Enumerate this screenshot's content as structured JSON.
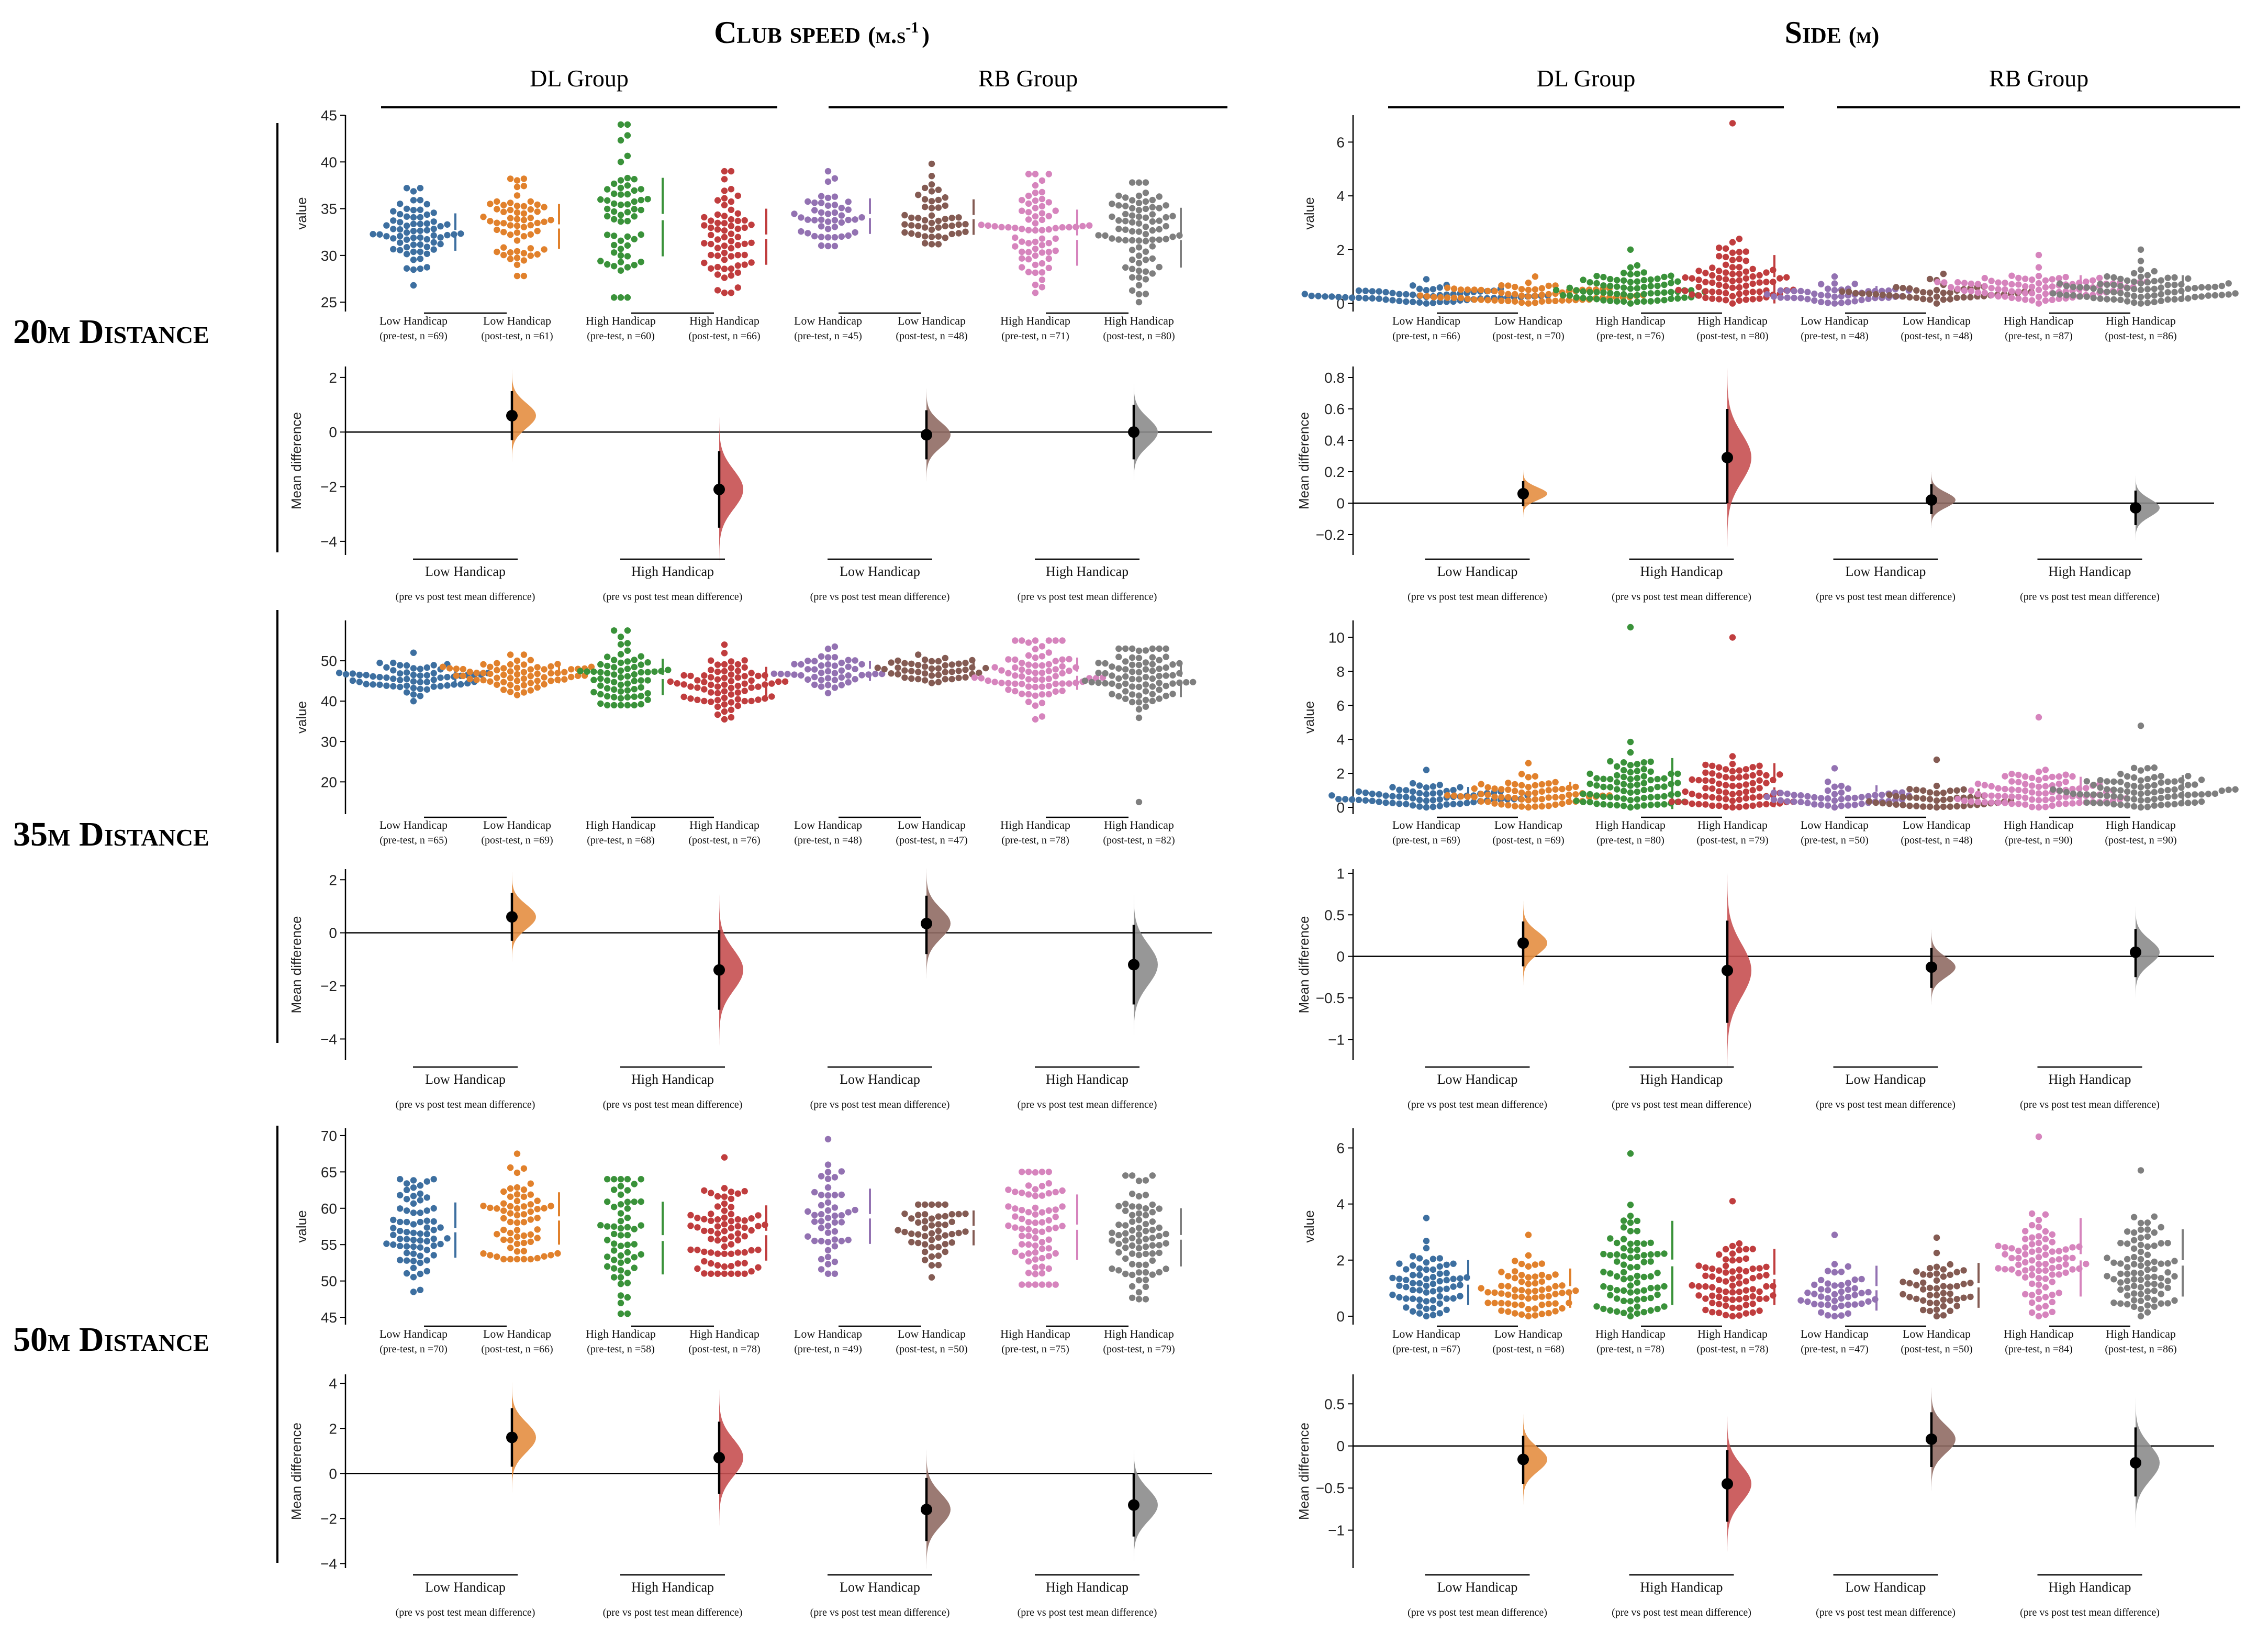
{
  "column_titles": [
    {
      "main": "Club speed",
      "unit": "(m.s",
      "sup": "-1",
      "close": ")"
    },
    {
      "main": "Side",
      "unit": "(m)",
      "sup": "",
      "close": ""
    }
  ],
  "group_labels": [
    "DL Group",
    "RB Group"
  ],
  "row_titles": [
    "20m Distance",
    "35m Distance",
    "50m Distance"
  ],
  "swarm_ylabel": "value",
  "diff_ylabel": "Mean difference",
  "handicaps": [
    "Low Handicap",
    "High Handicap"
  ],
  "comparison_caption": "(pre vs post test mean difference)",
  "palette": [
    "#3d6fa0",
    "#e1812c",
    "#3a923a",
    "#c03d3e",
    "#9372b2",
    "#845b53",
    "#d684bd",
    "#7f7f7f"
  ],
  "chart_data": [
    {
      "type": "estimation-plot",
      "metric": "Club speed",
      "distance": "20m",
      "swarm_ylim": [
        24,
        45
      ],
      "swarm_yticks": [
        25,
        30,
        35,
        40,
        45
      ],
      "diff_ylim": [
        -4.5,
        2.4
      ],
      "diff_yticks": [
        -4,
        -2,
        0,
        2
      ],
      "groups": [
        {
          "label": "Low Handicap",
          "sub": "(pre-test, n =69)",
          "n": 69,
          "mean": 32.5,
          "sd": 2.0,
          "min": 26.8,
          "max": 37.2
        },
        {
          "label": "Low Handicap",
          "sub": "(post-test, n =61)",
          "n": 61,
          "mean": 33.1,
          "sd": 2.4,
          "min": 27.8,
          "max": 38.2
        },
        {
          "label": "High Handicap",
          "sub": "(pre-test, n =60)",
          "n": 60,
          "mean": 34.1,
          "sd": 4.2,
          "min": 25.5,
          "max": 44.0
        },
        {
          "label": "High Handicap",
          "sub": "(post-test, n =66)",
          "n": 66,
          "mean": 32.0,
          "sd": 3.0,
          "min": 26.0,
          "max": 39.0
        },
        {
          "label": "Low Handicap",
          "sub": "(pre-test, n =45)",
          "n": 45,
          "mean": 34.2,
          "sd": 1.9,
          "min": 31.0,
          "max": 39.0
        },
        {
          "label": "Low Handicap",
          "sub": "(post-test, n =48)",
          "n": 48,
          "mean": 34.1,
          "sd": 1.9,
          "min": 31.2,
          "max": 39.8
        },
        {
          "label": "High Handicap",
          "sub": "(pre-test, n =71)",
          "n": 71,
          "mean": 31.9,
          "sd": 3.0,
          "min": 26.0,
          "max": 38.7
        },
        {
          "label": "High Handicap",
          "sub": "(post-test, n =80)",
          "n": 80,
          "mean": 31.9,
          "sd": 3.2,
          "min": 25.0,
          "max": 37.8
        }
      ],
      "diffs": [
        {
          "mean": 0.6,
          "ci": [
            -0.3,
            1.5
          ]
        },
        {
          "mean": -2.1,
          "ci": [
            -3.5,
            -0.7
          ]
        },
        {
          "mean": -0.1,
          "ci": [
            -1.0,
            0.8
          ]
        },
        {
          "mean": 0.0,
          "ci": [
            -1.0,
            1.0
          ]
        }
      ]
    },
    {
      "type": "estimation-plot",
      "metric": "Side",
      "distance": "20m",
      "swarm_ylim": [
        -0.3,
        7.0
      ],
      "swarm_yticks": [
        0,
        2,
        4,
        6
      ],
      "diff_ylim": [
        -0.33,
        0.87
      ],
      "diff_yticks": [
        -0.2,
        0.0,
        0.2,
        0.4,
        0.6,
        0.8
      ],
      "groups": [
        {
          "label": "Low Handicap",
          "sub": "(pre-test, n =66)",
          "n": 66,
          "mean": 0.35,
          "sd": 0.2,
          "min": 0.0,
          "max": 0.9
        },
        {
          "label": "Low Handicap",
          "sub": "(post-test, n =70)",
          "n": 70,
          "mean": 0.4,
          "sd": 0.25,
          "min": 0.0,
          "max": 1.0
        },
        {
          "label": "High Handicap",
          "sub": "(pre-test, n =76)",
          "n": 76,
          "mean": 0.6,
          "sd": 0.45,
          "min": 0.0,
          "max": 2.0
        },
        {
          "label": "High Handicap",
          "sub": "(post-test, n =80)",
          "n": 80,
          "mean": 0.9,
          "sd": 0.9,
          "min": 0.0,
          "max": 6.7
        },
        {
          "label": "Low Handicap",
          "sub": "(pre-test, n =48)",
          "n": 48,
          "mean": 0.4,
          "sd": 0.25,
          "min": 0.0,
          "max": 1.0
        },
        {
          "label": "Low Handicap",
          "sub": "(post-test, n =48)",
          "n": 48,
          "mean": 0.4,
          "sd": 0.25,
          "min": 0.0,
          "max": 1.1
        },
        {
          "label": "High Handicap",
          "sub": "(pre-test, n =87)",
          "n": 87,
          "mean": 0.65,
          "sd": 0.4,
          "min": 0.0,
          "max": 1.8
        },
        {
          "label": "High Handicap",
          "sub": "(post-test, n =86)",
          "n": 86,
          "mean": 0.6,
          "sd": 0.45,
          "min": 0.0,
          "max": 2.0
        }
      ],
      "diffs": [
        {
          "mean": 0.06,
          "ci": [
            -0.02,
            0.14
          ]
        },
        {
          "mean": 0.29,
          "ci": [
            0.0,
            0.6
          ]
        },
        {
          "mean": 0.02,
          "ci": [
            -0.07,
            0.12
          ]
        },
        {
          "mean": -0.03,
          "ci": [
            -0.14,
            0.08
          ]
        }
      ]
    },
    {
      "type": "estimation-plot",
      "metric": "Club speed",
      "distance": "35m",
      "swarm_ylim": [
        12,
        60
      ],
      "swarm_yticks": [
        20,
        30,
        40,
        50
      ],
      "diff_ylim": [
        -4.8,
        2.4
      ],
      "diff_yticks": [
        -4,
        -2,
        0,
        2
      ],
      "groups": [
        {
          "label": "Low Handicap",
          "sub": "(pre-test, n =65)",
          "n": 65,
          "mean": 46.0,
          "sd": 2.3,
          "min": 40.0,
          "max": 52.0
        },
        {
          "label": "Low Handicap",
          "sub": "(post-test, n =69)",
          "n": 69,
          "mean": 46.5,
          "sd": 2.1,
          "min": 41.5,
          "max": 51.5
        },
        {
          "label": "High Handicap",
          "sub": "(pre-test, n =68)",
          "n": 68,
          "mean": 46.0,
          "sd": 4.5,
          "min": 39.0,
          "max": 57.5
        },
        {
          "label": "High Handicap",
          "sub": "(post-test, n =76)",
          "n": 76,
          "mean": 44.5,
          "sd": 4.0,
          "min": 35.5,
          "max": 54.0
        },
        {
          "label": "Low Handicap",
          "sub": "(pre-test, n =48)",
          "n": 48,
          "mean": 47.5,
          "sd": 2.5,
          "min": 42.0,
          "max": 53.5
        },
        {
          "label": "Low Handicap",
          "sub": "(post-test, n =47)",
          "n": 47,
          "mean": 47.8,
          "sd": 1.8,
          "min": 44.5,
          "max": 51.5
        },
        {
          "label": "High Handicap",
          "sub": "(pre-test, n =78)",
          "n": 78,
          "mean": 46.8,
          "sd": 4.0,
          "min": 35.5,
          "max": 55.0
        },
        {
          "label": "High Handicap",
          "sub": "(post-test, n =82)",
          "n": 82,
          "mean": 45.5,
          "sd": 4.5,
          "min": 15.0,
          "max": 53.0
        }
      ],
      "diffs": [
        {
          "mean": 0.6,
          "ci": [
            -0.3,
            1.5
          ]
        },
        {
          "mean": -1.4,
          "ci": [
            -2.9,
            0.1
          ]
        },
        {
          "mean": 0.35,
          "ci": [
            -0.8,
            1.4
          ]
        },
        {
          "mean": -1.2,
          "ci": [
            -2.7,
            0.3
          ]
        }
      ]
    },
    {
      "type": "estimation-plot",
      "metric": "Side",
      "distance": "35m",
      "swarm_ylim": [
        -0.4,
        11.0
      ],
      "swarm_yticks": [
        0,
        2,
        4,
        6,
        8,
        10
      ],
      "diff_ylim": [
        -1.25,
        1.05
      ],
      "diff_yticks": [
        -1.0,
        -0.5,
        0.0,
        0.5,
        1.0
      ],
      "groups": [
        {
          "label": "Low Handicap",
          "sub": "(pre-test, n =69)",
          "n": 69,
          "mean": 0.7,
          "sd": 0.5,
          "min": 0.0,
          "max": 2.2
        },
        {
          "label": "Low Handicap",
          "sub": "(post-test, n =69)",
          "n": 69,
          "mean": 0.9,
          "sd": 0.6,
          "min": 0.0,
          "max": 2.6
        },
        {
          "label": "High Handicap",
          "sub": "(pre-test, n =80)",
          "n": 80,
          "mean": 1.4,
          "sd": 1.5,
          "min": 0.0,
          "max": 10.6
        },
        {
          "label": "High Handicap",
          "sub": "(post-test, n =79)",
          "n": 79,
          "mean": 1.3,
          "sd": 1.3,
          "min": 0.0,
          "max": 10.0
        },
        {
          "label": "Low Handicap",
          "sub": "(pre-test, n =50)",
          "n": 50,
          "mean": 0.8,
          "sd": 0.5,
          "min": 0.0,
          "max": 2.3
        },
        {
          "label": "Low Handicap",
          "sub": "(post-test, n =48)",
          "n": 48,
          "mean": 0.6,
          "sd": 0.5,
          "min": 0.0,
          "max": 2.8
        },
        {
          "label": "High Handicap",
          "sub": "(pre-test, n =90)",
          "n": 90,
          "mean": 1.0,
          "sd": 0.8,
          "min": 0.0,
          "max": 5.3
        },
        {
          "label": "High Handicap",
          "sub": "(post-test, n =90)",
          "n": 90,
          "mean": 1.1,
          "sd": 0.8,
          "min": 0.0,
          "max": 4.8
        }
      ],
      "diffs": [
        {
          "mean": 0.16,
          "ci": [
            -0.12,
            0.42
          ]
        },
        {
          "mean": -0.17,
          "ci": [
            -0.8,
            0.43
          ]
        },
        {
          "mean": -0.13,
          "ci": [
            -0.38,
            0.1
          ]
        },
        {
          "mean": 0.05,
          "ci": [
            -0.25,
            0.33
          ]
        }
      ]
    },
    {
      "type": "estimation-plot",
      "metric": "Club speed",
      "distance": "50m",
      "swarm_ylim": [
        44,
        71
      ],
      "swarm_yticks": [
        45,
        50,
        55,
        60,
        65,
        70
      ],
      "diff_ylim": [
        -4.2,
        4.4
      ],
      "diff_yticks": [
        -4,
        -2,
        0,
        2,
        4
      ],
      "groups": [
        {
          "label": "Low Handicap",
          "sub": "(pre-test, n =70)",
          "n": 70,
          "mean": 57.0,
          "sd": 3.8,
          "min": 48.5,
          "max": 64.0
        },
        {
          "label": "Low Handicap",
          "sub": "(post-test, n =66)",
          "n": 66,
          "mean": 58.6,
          "sd": 3.6,
          "min": 53.0,
          "max": 67.5
        },
        {
          "label": "High Handicap",
          "sub": "(pre-test, n =58)",
          "n": 58,
          "mean": 55.9,
          "sd": 5.0,
          "min": 45.5,
          "max": 64.0
        },
        {
          "label": "High Handicap",
          "sub": "(post-test, n =78)",
          "n": 78,
          "mean": 56.6,
          "sd": 3.8,
          "min": 51.0,
          "max": 67.0
        },
        {
          "label": "Low Handicap",
          "sub": "(pre-test, n =49)",
          "n": 49,
          "mean": 58.9,
          "sd": 3.8,
          "min": 51.0,
          "max": 69.5
        },
        {
          "label": "Low Handicap",
          "sub": "(post-test, n =50)",
          "n": 50,
          "mean": 57.3,
          "sd": 2.4,
          "min": 50.5,
          "max": 60.5
        },
        {
          "label": "High Handicap",
          "sub": "(pre-test, n =75)",
          "n": 75,
          "mean": 57.4,
          "sd": 4.5,
          "min": 49.5,
          "max": 65.0
        },
        {
          "label": "High Handicap",
          "sub": "(post-test, n =79)",
          "n": 79,
          "mean": 56.0,
          "sd": 4.0,
          "min": 47.5,
          "max": 64.5
        }
      ],
      "diffs": [
        {
          "mean": 1.6,
          "ci": [
            0.3,
            2.9
          ]
        },
        {
          "mean": 0.7,
          "ci": [
            -0.9,
            2.3
          ]
        },
        {
          "mean": -1.6,
          "ci": [
            -3.0,
            -0.2
          ]
        },
        {
          "mean": -1.4,
          "ci": [
            -2.8,
            0.0
          ]
        }
      ]
    },
    {
      "type": "estimation-plot",
      "metric": "Side",
      "distance": "50m",
      "swarm_ylim": [
        -0.3,
        6.7
      ],
      "swarm_yticks": [
        0,
        2,
        4,
        6
      ],
      "diff_ylim": [
        -1.45,
        0.85
      ],
      "diff_yticks": [
        -1.0,
        -0.5,
        0.0,
        0.5
      ],
      "groups": [
        {
          "label": "Low Handicap",
          "sub": "(pre-test, n =67)",
          "n": 67,
          "mean": 1.2,
          "sd": 0.8,
          "min": 0.0,
          "max": 3.5
        },
        {
          "label": "Low Handicap",
          "sub": "(post-test, n =68)",
          "n": 68,
          "mean": 1.0,
          "sd": 0.7,
          "min": 0.0,
          "max": 2.9
        },
        {
          "label": "High Handicap",
          "sub": "(pre-test, n =78)",
          "n": 78,
          "mean": 1.9,
          "sd": 1.5,
          "min": 0.0,
          "max": 5.8
        },
        {
          "label": "High Handicap",
          "sub": "(post-test, n =78)",
          "n": 78,
          "mean": 1.4,
          "sd": 1.0,
          "min": 0.0,
          "max": 4.1
        },
        {
          "label": "Low Handicap",
          "sub": "(pre-test, n =47)",
          "n": 47,
          "mean": 1.0,
          "sd": 0.8,
          "min": 0.0,
          "max": 2.9
        },
        {
          "label": "Low Handicap",
          "sub": "(post-test, n =50)",
          "n": 50,
          "mean": 1.1,
          "sd": 0.8,
          "min": 0.0,
          "max": 2.8
        },
        {
          "label": "High Handicap",
          "sub": "(pre-test, n =84)",
          "n": 84,
          "mean": 2.1,
          "sd": 1.4,
          "min": 0.0,
          "max": 6.4
        },
        {
          "label": "High Handicap",
          "sub": "(post-test, n =86)",
          "n": 86,
          "mean": 1.9,
          "sd": 1.2,
          "min": 0.0,
          "max": 5.2
        }
      ],
      "diffs": [
        {
          "mean": -0.16,
          "ci": [
            -0.45,
            0.12
          ]
        },
        {
          "mean": -0.45,
          "ci": [
            -0.9,
            -0.05
          ]
        },
        {
          "mean": 0.08,
          "ci": [
            -0.25,
            0.4
          ]
        },
        {
          "mean": -0.2,
          "ci": [
            -0.6,
            0.22
          ]
        }
      ]
    }
  ]
}
